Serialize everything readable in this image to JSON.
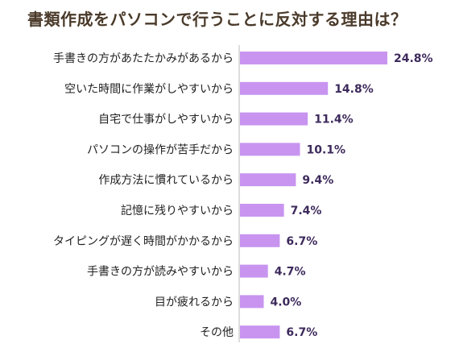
{
  "chart_data": {
    "type": "bar",
    "orientation": "horizontal",
    "title": "書類作成をパソコンで行うことに反対する理由は？",
    "categories": [
      "手書きの方があたたかみがあるから",
      "空いた時間に作業がしやすいから",
      "自宅で仕事がしやすいから",
      "パソコンの操作が苦手だから",
      "作成方法に慣れているから",
      "記憶に残りやすいから",
      "タイピングが遅く時間がかかるから",
      "手書きの方が読みやすいから",
      "目が疲れるから",
      "その他"
    ],
    "values": [
      24.8,
      14.8,
      11.4,
      10.1,
      9.4,
      7.4,
      6.7,
      4.7,
      4.0,
      6.7
    ],
    "value_labels": [
      "24.8%",
      "14.8%",
      "11.4%",
      "10.1%",
      "9.4%",
      "7.4%",
      "6.7%",
      "4.7%",
      "4.0%",
      "6.7%"
    ],
    "unit": "%",
    "bar_color": "#c894f0",
    "label_color": "#3d2a5c",
    "xlim": [
      0,
      24.8
    ]
  }
}
